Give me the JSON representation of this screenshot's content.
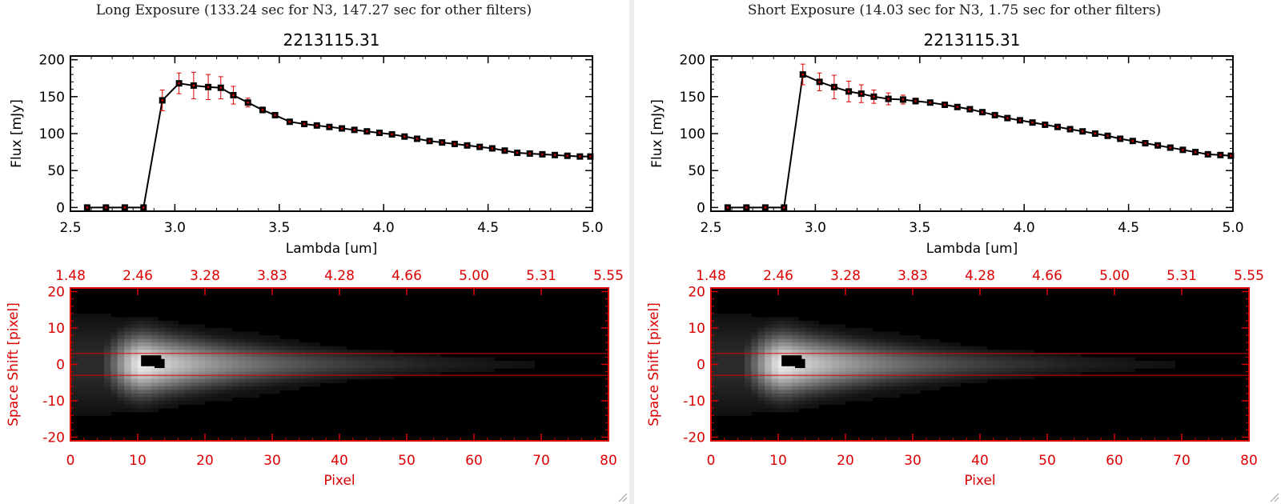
{
  "panels": [
    {
      "title": "Long Exposure (133.24 sec for N3, 147.27 sec for other filters)",
      "spectrum": {
        "type": "line",
        "title": "2213115.31",
        "xlabel": "Lambda [um]",
        "ylabel": "Flux [mJy]",
        "xlim": [
          2.5,
          5.0
        ],
        "ylim": [
          -5,
          205
        ],
        "xticks": [
          "2.5",
          "3.0",
          "3.5",
          "4.0",
          "4.5",
          "5.0"
        ],
        "xtick_values": [
          2.5,
          3.0,
          3.5,
          4.0,
          4.5,
          5.0
        ],
        "yticks": [
          "0",
          "50",
          "100",
          "150",
          "200"
        ],
        "ytick_values": [
          0,
          50,
          100,
          150,
          200
        ],
        "x": [
          2.58,
          2.67,
          2.76,
          2.85,
          2.94,
          3.02,
          3.09,
          3.16,
          3.22,
          3.28,
          3.35,
          3.42,
          3.48,
          3.55,
          3.62,
          3.68,
          3.74,
          3.8,
          3.86,
          3.92,
          3.98,
          4.04,
          4.1,
          4.16,
          4.22,
          4.28,
          4.34,
          4.4,
          4.46,
          4.52,
          4.58,
          4.64,
          4.7,
          4.76,
          4.82,
          4.88,
          4.94,
          4.99
        ],
        "y": [
          0,
          0,
          0,
          0,
          145,
          168,
          165,
          163,
          162,
          152,
          142,
          132,
          125,
          116,
          113,
          111,
          109,
          107,
          105,
          103,
          101,
          99,
          96,
          93,
          90,
          88,
          86,
          84,
          82,
          80,
          77,
          74,
          73,
          72,
          71,
          70,
          69,
          69
        ],
        "err": [
          0,
          0,
          0,
          0,
          14,
          14,
          18,
          17,
          15,
          12,
          6,
          4,
          3,
          3,
          2,
          2,
          2,
          2,
          2,
          2,
          2,
          2,
          2,
          2,
          2,
          2,
          2,
          2,
          2,
          2,
          2,
          2,
          2,
          2,
          2,
          2,
          2,
          2
        ]
      },
      "image": {
        "type": "heatmap",
        "ylabel": "Space Shift [pixel]",
        "xlabel": "Pixel",
        "xlim": [
          0,
          80
        ],
        "ylim": [
          -21,
          21
        ],
        "xticks": [
          "0",
          "10",
          "20",
          "30",
          "40",
          "50",
          "60",
          "70",
          "80"
        ],
        "xtick_values": [
          0,
          10,
          20,
          30,
          40,
          50,
          60,
          70,
          80
        ],
        "yticks": [
          "-20",
          "-10",
          "0",
          "10",
          "20"
        ],
        "ytick_values": [
          -20,
          -10,
          0,
          10,
          20
        ],
        "top_ticks": [
          "1.48",
          "2.46",
          "3.28",
          "3.83",
          "4.28",
          "4.66",
          "5.00",
          "5.31",
          "5.55"
        ],
        "aperture_lines": [
          3,
          -3
        ]
      }
    },
    {
      "title": "Short Exposure (14.03 sec for N3, 1.75 sec for other filters)",
      "spectrum": {
        "type": "line",
        "title": "2213115.31",
        "xlabel": "Lambda [um]",
        "ylabel": "Flux [mJy]",
        "xlim": [
          2.5,
          5.0
        ],
        "ylim": [
          -5,
          205
        ],
        "xticks": [
          "2.5",
          "3.0",
          "3.5",
          "4.0",
          "4.5",
          "5.0"
        ],
        "xtick_values": [
          2.5,
          3.0,
          3.5,
          4.0,
          4.5,
          5.0
        ],
        "yticks": [
          "0",
          "50",
          "100",
          "150",
          "200"
        ],
        "ytick_values": [
          0,
          50,
          100,
          150,
          200
        ],
        "x": [
          2.58,
          2.67,
          2.76,
          2.85,
          2.94,
          3.02,
          3.09,
          3.16,
          3.22,
          3.28,
          3.35,
          3.42,
          3.48,
          3.55,
          3.62,
          3.68,
          3.74,
          3.8,
          3.86,
          3.92,
          3.98,
          4.04,
          4.1,
          4.16,
          4.22,
          4.28,
          4.34,
          4.4,
          4.46,
          4.52,
          4.58,
          4.64,
          4.7,
          4.76,
          4.82,
          4.88,
          4.94,
          4.99
        ],
        "y": [
          0,
          0,
          0,
          0,
          180,
          170,
          163,
          157,
          154,
          150,
          147,
          146,
          144,
          142,
          139,
          136,
          133,
          129,
          125,
          121,
          118,
          115,
          112,
          109,
          106,
          103,
          100,
          97,
          93,
          90,
          87,
          84,
          81,
          78,
          75,
          72,
          71,
          70
        ],
        "err": [
          0,
          0,
          0,
          0,
          14,
          12,
          16,
          14,
          12,
          9,
          8,
          6,
          4,
          3,
          3,
          3,
          3,
          3,
          3,
          3,
          2,
          2,
          2,
          2,
          2,
          2,
          2,
          2,
          2,
          2,
          2,
          2,
          2,
          2,
          2,
          2,
          2,
          2
        ]
      },
      "image": {
        "type": "heatmap",
        "ylabel": "Space Shift [pixel]",
        "xlabel": "Pixel",
        "xlim": [
          0,
          80
        ],
        "ylim": [
          -21,
          21
        ],
        "xticks": [
          "0",
          "10",
          "20",
          "30",
          "40",
          "50",
          "60",
          "70",
          "80"
        ],
        "xtick_values": [
          0,
          10,
          20,
          30,
          40,
          50,
          60,
          70,
          80
        ],
        "yticks": [
          "-20",
          "-10",
          "0",
          "10",
          "20"
        ],
        "ytick_values": [
          -20,
          -10,
          0,
          10,
          20
        ],
        "top_ticks": [
          "1.48",
          "2.46",
          "3.28",
          "3.83",
          "4.28",
          "4.66",
          "5.00",
          "5.31",
          "5.55"
        ],
        "aperture_lines": [
          3,
          -3
        ]
      }
    }
  ],
  "colors": {
    "line": "#000000",
    "marker": "#000000",
    "error_bar": "#dd0000",
    "image_axes": "#dd0000",
    "aperture": "#dd0000"
  }
}
